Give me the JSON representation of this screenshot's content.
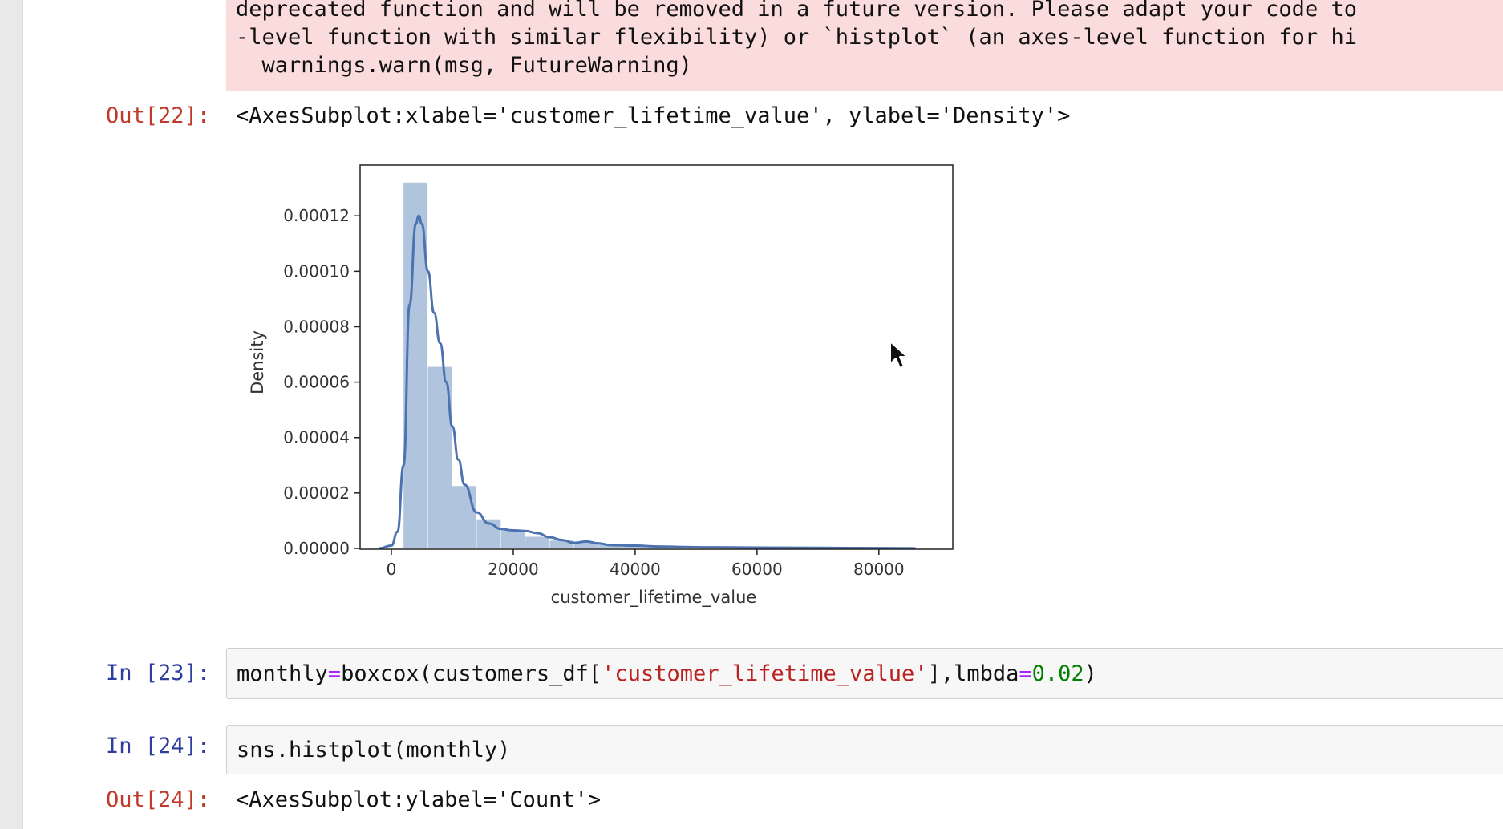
{
  "stderr": {
    "lines": [
      "deprecated function and will be removed in a future version. Please adapt your code to",
      "-level function with similar flexibility) or `histplot` (an axes-level function for hi",
      "  warnings.warn(msg, FutureWarning)"
    ]
  },
  "cells": {
    "out22": {
      "prompt": "Out[22]:",
      "text": "<AxesSubplot:xlabel='customer_lifetime_value', ylabel='Density'>"
    },
    "in23": {
      "prompt": "In [23]:",
      "code": {
        "p1": "monthly",
        "p2": "=",
        "p3": "boxcox(customers_df[",
        "p4": "'customer_lifetime_value'",
        "p5": "],lmbda",
        "p6": "=",
        "p7": "0.02",
        "p8": ")"
      }
    },
    "in24": {
      "prompt": "In [24]:",
      "code": "sns.histplot(monthly)"
    },
    "out24": {
      "prompt": "Out[24]:",
      "text": "<AxesSubplot:ylabel='Count'>"
    }
  },
  "colors": {
    "bar_fill": "#b0c4de",
    "kde_line": "#4c72b0",
    "stderr_bg": "#fadcdc",
    "out_prompt": "#c0392b",
    "in_prompt": "#303f9f"
  },
  "chart_data": {
    "type": "bar",
    "xlabel": "customer_lifetime_value",
    "ylabel": "Density",
    "xlim": [
      -5000,
      92000
    ],
    "ylim": [
      0,
      0.000138
    ],
    "xticks": [
      0,
      20000,
      40000,
      60000,
      80000
    ],
    "xtick_labels": [
      "0",
      "20000",
      "40000",
      "60000",
      "80000"
    ],
    "yticks": [
      0,
      2e-05,
      4e-05,
      6e-05,
      8e-05,
      0.0001,
      0.00012
    ],
    "ytick_labels": [
      "0.00000",
      "0.00002",
      "0.00004",
      "0.00006",
      "0.00008",
      "0.00010",
      "0.00012"
    ],
    "histogram": {
      "bin_edges": [
        2000,
        6000,
        10000,
        14000,
        18000,
        22000,
        26000,
        30000,
        34000,
        38000,
        42000,
        46000,
        50000,
        54000,
        58000,
        62000,
        66000,
        70000,
        74000,
        78000,
        82000,
        86000
      ],
      "densities": [
        0.000132,
        6.55e-05,
        2.25e-05,
        1.05e-05,
        6.5e-06,
        4.2e-06,
        2.8e-06,
        2.2e-06,
        1.5e-06,
        1e-06,
        7e-07,
        5e-07,
        4e-07,
        3e-07,
        2e-07,
        2e-07,
        1.5e-07,
        1e-07,
        1e-07,
        8e-08,
        6e-08
      ]
    },
    "kde": {
      "x": [
        -2000,
        0,
        1000,
        2000,
        3000,
        4000,
        4500,
        5000,
        6000,
        7000,
        8000,
        9000,
        10000,
        11000,
        12000,
        14000,
        16000,
        18000,
        20000,
        22000,
        24000,
        26000,
        28000,
        30000,
        32000,
        34000,
        36000,
        40000,
        44000,
        48000,
        52000,
        60000,
        70000,
        80000,
        86000
      ],
      "y": [
        0,
        1e-06,
        6e-06,
        3e-05,
        8.8e-05,
        0.000117,
        0.00012,
        0.000117,
        0.0001,
        8.5e-05,
        7.4e-05,
        6e-05,
        4.4e-05,
        3.2e-05,
        2.3e-05,
        1.3e-05,
        9e-06,
        7e-06,
        6.5e-06,
        6.3e-06,
        5.5e-06,
        4e-06,
        3e-06,
        2e-06,
        2.5e-06,
        1.8e-06,
        1.2e-06,
        1e-06,
        7e-07,
        5e-07,
        4e-07,
        3e-07,
        2e-07,
        1e-07,
        5e-08
      ]
    },
    "grid": false,
    "legend": "none"
  }
}
